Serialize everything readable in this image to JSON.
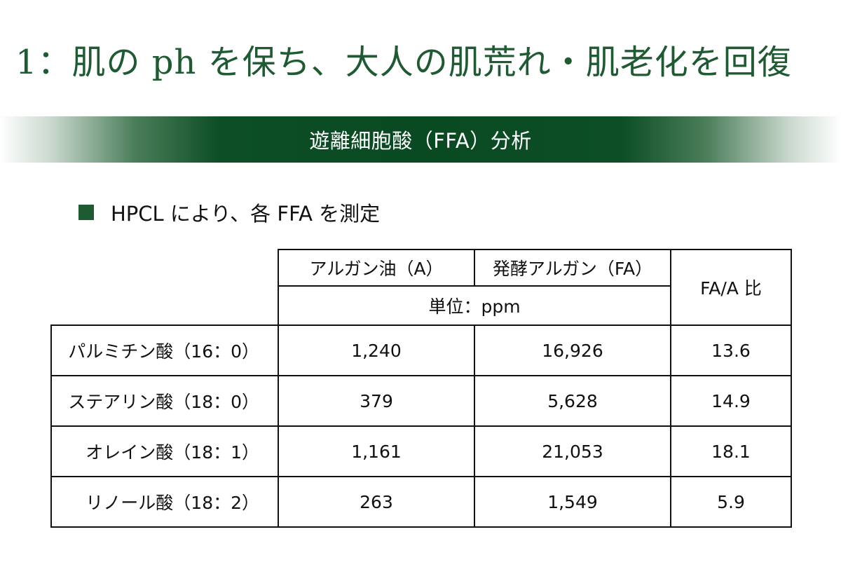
{
  "page": {
    "title": "1：肌の ph を保ち、大人の肌荒れ・肌老化を回復",
    "section_label": "遊離細胞酸（FFA）分析",
    "bullet_text": "HPCL により、各 FFA を測定"
  },
  "colors": {
    "accent_green": "#1e5a32",
    "band_green": "#0a4a22"
  },
  "table": {
    "columns": {
      "argan_oil": "アルガン油（A）",
      "fermented_argan": "発酵アルガン（FA）",
      "ratio": "FA/A 比",
      "unit": "単位：ppm"
    },
    "rows": [
      {
        "label": "パルミチン酸（16：0）",
        "a": "1,240",
        "fa": "16,926",
        "ratio": "13.6"
      },
      {
        "label": "ステアリン酸（18：0）",
        "a": "379",
        "fa": "5,628",
        "ratio": "14.9"
      },
      {
        "label": "オレイン酸（18：1）",
        "a": "1,161",
        "fa": "21,053",
        "ratio": "18.1"
      },
      {
        "label": "リノール酸（18：2）",
        "a": "263",
        "fa": "1,549",
        "ratio": "5.9"
      }
    ]
  }
}
